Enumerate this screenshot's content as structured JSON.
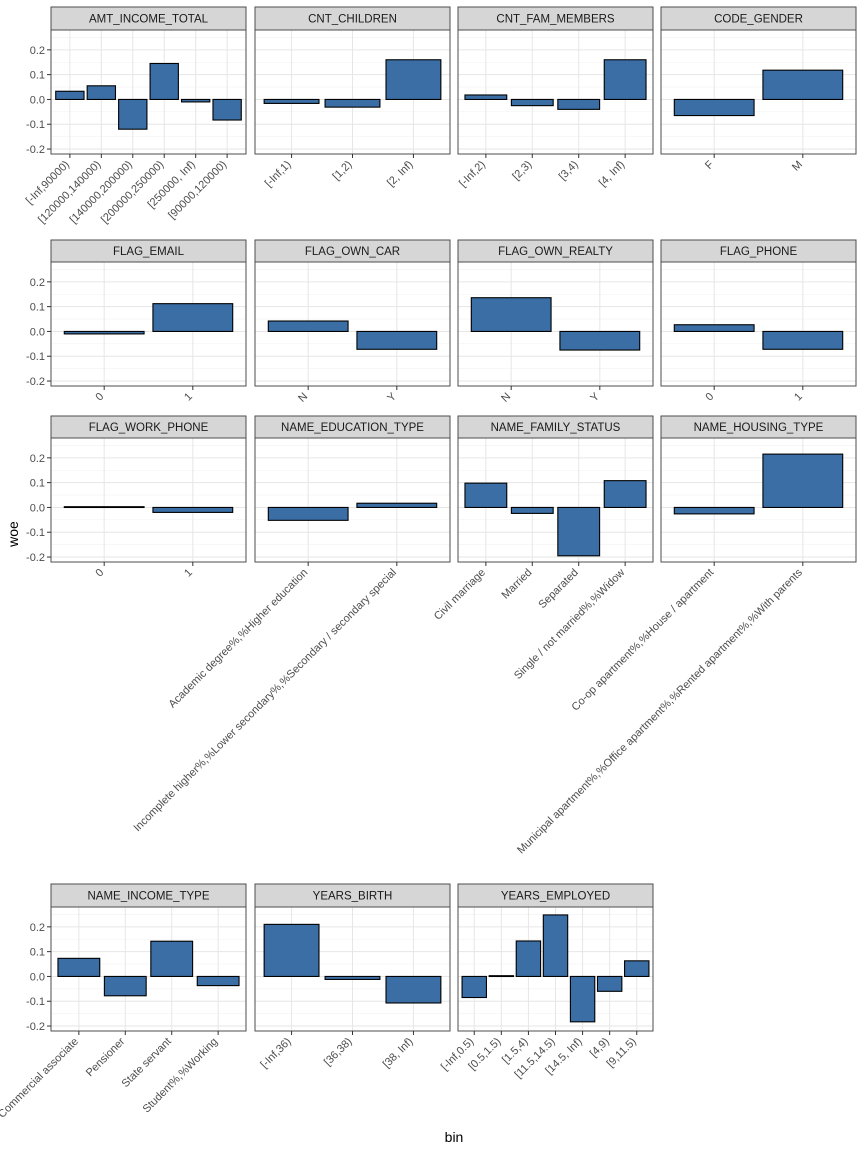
{
  "chart_data": {
    "type": "bar",
    "xlabel": "bin",
    "ylabel": "woe",
    "ylim": [
      -0.22,
      0.28
    ],
    "yticks": [
      -0.2,
      -0.1,
      0.0,
      0.1,
      0.2
    ],
    "ytick_labels": [
      "-0.2",
      "-0.1",
      "0.0",
      "0.1",
      "0.2"
    ],
    "grid": true,
    "colors": {
      "bar_fill": "#3a6ea5",
      "bar_stroke": "#000000",
      "strip_fill": "#d6d6d6",
      "panel_border": "#4d4d4d",
      "grid_major": "#e6e6e6",
      "grid_minor": "#f2f2f2"
    },
    "panels": [
      {
        "title": "AMT_INCOME_TOTAL",
        "categories": [
          "[-Inf,90000)",
          "[120000,140000)",
          "[140000,200000)",
          "[200000,250000)",
          "[250000, Inf)",
          "[90000,120000)"
        ],
        "values": [
          0.033,
          0.055,
          -0.12,
          0.145,
          -0.01,
          -0.083
        ]
      },
      {
        "title": "CNT_CHILDREN",
        "categories": [
          "[-Inf,1)",
          "[1,2)",
          "[2, Inf)"
        ],
        "values": [
          -0.016,
          -0.031,
          0.16
        ]
      },
      {
        "title": "CNT_FAM_MEMBERS",
        "categories": [
          "[-Inf,2)",
          "[2,3)",
          "[3,4)",
          "[4, Inf)"
        ],
        "values": [
          0.018,
          -0.025,
          -0.04,
          0.16
        ]
      },
      {
        "title": "CODE_GENDER",
        "categories": [
          "F",
          "M"
        ],
        "values": [
          -0.065,
          0.118
        ]
      },
      {
        "title": "FLAG_EMAIL",
        "categories": [
          "0",
          "1"
        ],
        "values": [
          -0.01,
          0.112
        ]
      },
      {
        "title": "FLAG_OWN_CAR",
        "categories": [
          "N",
          "Y"
        ],
        "values": [
          0.042,
          -0.072
        ]
      },
      {
        "title": "FLAG_OWN_REALTY",
        "categories": [
          "N",
          "Y"
        ],
        "values": [
          0.136,
          -0.075
        ]
      },
      {
        "title": "FLAG_PHONE",
        "categories": [
          "0",
          "1"
        ],
        "values": [
          0.027,
          -0.072
        ]
      },
      {
        "title": "FLAG_WORK_PHONE",
        "categories": [
          "0",
          "1"
        ],
        "values": [
          0.003,
          -0.02
        ]
      },
      {
        "title": "NAME_EDUCATION_TYPE",
        "categories": [
          "Academic degree%,%Higher education",
          "Incomplete higher%,%Lower secondary%,%Secondary / secondary special"
        ],
        "values": [
          -0.052,
          0.017
        ]
      },
      {
        "title": "NAME_FAMILY_STATUS",
        "categories": [
          "Civil marriage",
          "Married",
          "Separated",
          "Single / not married%,%Widow"
        ],
        "values": [
          0.098,
          -0.024,
          -0.195,
          0.108
        ]
      },
      {
        "title": "NAME_HOUSING_TYPE",
        "categories": [
          "Co-op apartment%,%House / apartment",
          "Municipal apartment%,%Office apartment%,%Rented apartment%,%With parents"
        ],
        "values": [
          -0.026,
          0.215
        ]
      },
      {
        "title": "NAME_INCOME_TYPE",
        "categories": [
          "Commercial associate",
          "Pensioner",
          "State servant",
          "Student%,%Working"
        ],
        "values": [
          0.073,
          -0.078,
          0.142,
          -0.037
        ]
      },
      {
        "title": "YEARS_BIRTH",
        "categories": [
          "[-Inf,36)",
          "[36,38)",
          "[38, Inf)"
        ],
        "values": [
          0.21,
          -0.012,
          -0.107
        ]
      },
      {
        "title": "YEARS_EMPLOYED",
        "categories": [
          "[-Inf,0.5)",
          "[0.5,1.5)",
          "[1.5,4)",
          "[11.5,14.5)",
          "[14.5, Inf)",
          "[4,9)",
          "[9,11.5)"
        ],
        "values": [
          -0.085,
          0.003,
          0.143,
          0.248,
          -0.183,
          -0.06,
          0.063
        ]
      }
    ]
  }
}
